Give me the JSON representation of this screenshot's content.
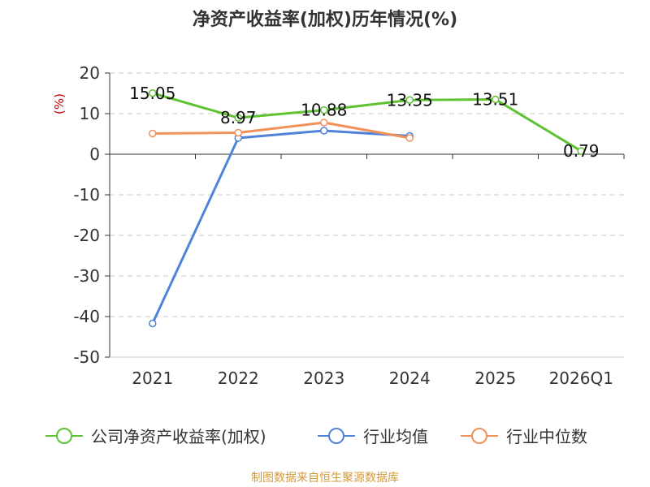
{
  "title": "净资产收益率(加权)历年情况(%)",
  "source_note": "制图数据来自恒生聚源数据库",
  "chart_data": {
    "type": "line",
    "categories": [
      "2021",
      "2022",
      "2023",
      "2024",
      "2025",
      "2026Q1"
    ],
    "ylabel": "(%)",
    "ylim": [
      -50,
      20
    ],
    "yticks": [
      20,
      10,
      0,
      -10,
      -20,
      -30,
      -40,
      -50
    ],
    "grid": true,
    "legend_position": "bottom",
    "series": [
      {
        "name": "公司净资产收益率(加权)",
        "color": "#5ec232",
        "values": [
          15.05,
          8.97,
          10.88,
          13.35,
          13.51,
          0.79
        ],
        "labels": [
          "15.05",
          "8.97",
          "10.88",
          "13.35",
          "13.51",
          "0.79"
        ]
      },
      {
        "name": "行业均值",
        "color": "#4f82d8",
        "values": [
          -41.7,
          4.0,
          5.8,
          4.5,
          null,
          null
        ]
      },
      {
        "name": "行业中位数",
        "color": "#f2905a",
        "values": [
          5.1,
          5.3,
          7.8,
          4.0,
          null,
          null
        ]
      }
    ]
  }
}
